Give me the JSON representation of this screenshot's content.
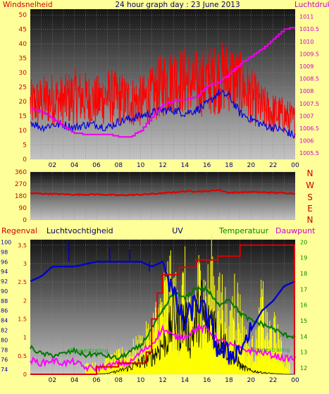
{
  "header": {
    "left_label": "Windsnelheid",
    "title": "24 hour graph day : 23 June 2013",
    "right_label": "Luchtdruk"
  },
  "colors": {
    "background": "#ffff99",
    "wind": "#ff0000",
    "gust": "#0000dd",
    "pressure": "#ee00ee",
    "direction": "#dd0000",
    "rain": "#dd0000",
    "humidity": "#0000cc",
    "uv": "#ffff00",
    "temperature": "#007700",
    "dewpoint": "#ff00ff",
    "solar": "#000000",
    "label_red": "#cc0000",
    "label_navy": "#000066",
    "label_magenta": "#cc00cc",
    "label_green": "#008800"
  },
  "compass": [
    "N",
    "W",
    "S",
    "E",
    "N"
  ],
  "legend3": {
    "rain": "Regenval",
    "humidity": "Luchtvochtigheid",
    "uv": "UV",
    "temperature": "Temperatuur",
    "dewpoint": "Dauwpunt",
    "overlay_left": "Zonnestraling",
    "overlay_right": "Zonnestraling"
  },
  "x_ticks": [
    "02",
    "04",
    "06",
    "08",
    "10",
    "12",
    "14",
    "16",
    "18",
    "20",
    "22",
    "00"
  ],
  "chart_data": [
    {
      "type": "line",
      "panel": "wind_pressure",
      "x_range_hours": [
        0,
        24
      ],
      "x_tick_labels": [
        "02",
        "04",
        "06",
        "08",
        "10",
        "12",
        "14",
        "16",
        "18",
        "20",
        "22",
        "00"
      ],
      "y_left": {
        "label": "Windsnelheid",
        "ticks": [
          0,
          5,
          10,
          15,
          20,
          25,
          30,
          35,
          40,
          45,
          50
        ],
        "ylim": [
          0,
          52
        ]
      },
      "y_right": {
        "label": "Luchtdruk",
        "ticks": [
          "1005.5",
          "1006",
          "1006.5",
          "1007",
          "1007.5",
          "1008",
          "1008.5",
          "1009",
          "1009.5",
          "1010",
          "1010.5",
          "1011"
        ],
        "ylim": [
          1005.25,
          1011.3
        ]
      },
      "grid": true,
      "series": [
        {
          "key": "wind",
          "axis": "left",
          "x": [
            0,
            1,
            2,
            3,
            4,
            5,
            6,
            7,
            8,
            9,
            10,
            11,
            12,
            13,
            14,
            15,
            16,
            17,
            18,
            19,
            20,
            21,
            22,
            23,
            24
          ],
          "values": [
            19,
            20,
            21,
            20,
            22,
            21,
            20,
            22,
            21,
            20,
            20,
            22,
            26,
            28,
            27,
            26,
            27,
            28,
            29,
            26,
            22,
            18,
            16,
            15,
            13
          ]
        },
        {
          "key": "gust",
          "axis": "left",
          "x": [
            0,
            1,
            2,
            3,
            4,
            5,
            6,
            7,
            8,
            9,
            10,
            11,
            12,
            13,
            14,
            15,
            16,
            17,
            18,
            19,
            20,
            21,
            22,
            23,
            24
          ],
          "values": [
            13,
            11,
            12,
            12,
            11,
            12,
            12,
            11,
            13,
            14,
            15,
            16,
            17,
            17,
            16,
            17,
            19,
            23,
            22,
            16,
            14,
            12,
            11,
            10,
            8
          ]
        },
        {
          "key": "pressure",
          "axis": "right",
          "x": [
            0,
            1,
            2,
            3,
            4,
            5,
            6,
            7,
            8,
            9,
            10,
            11,
            12,
            13,
            14,
            15,
            16,
            17,
            18,
            19,
            20,
            21,
            22,
            23,
            24
          ],
          "values": [
            1007.3,
            1007.15,
            1006.9,
            1006.55,
            1006.3,
            1006.25,
            1006.25,
            1006.25,
            1006.15,
            1006.15,
            1006.4,
            1006.95,
            1007.45,
            1007.6,
            1007.65,
            1007.75,
            1008.2,
            1008.35,
            1008.7,
            1009.1,
            1009.4,
            1009.7,
            1010.1,
            1010.5,
            1010.55
          ]
        }
      ]
    },
    {
      "type": "line",
      "panel": "wind_direction",
      "x_range_hours": [
        0,
        24
      ],
      "y": {
        "ticks": [
          0,
          90,
          180,
          270,
          360
        ],
        "ylim": [
          0,
          360
        ]
      },
      "grid": true,
      "series": [
        {
          "key": "direction",
          "x": [
            0,
            2,
            4,
            6,
            8,
            10,
            12,
            14,
            16,
            17,
            18,
            20,
            22,
            24
          ],
          "values": [
            200,
            195,
            190,
            192,
            185,
            190,
            200,
            215,
            215,
            225,
            205,
            210,
            205,
            200
          ]
        }
      ]
    },
    {
      "type": "line",
      "panel": "rain_humidity_uv_temperature",
      "x_range_hours": [
        0,
        24
      ],
      "y_axes": {
        "rain": {
          "ticks": [
            0,
            0.5,
            1,
            1.5,
            2,
            2.5,
            3,
            3.5
          ]
        },
        "humidity": {
          "ticks": [
            74,
            76,
            78,
            80,
            82,
            84,
            86,
            88,
            90,
            92,
            94,
            96,
            98,
            100
          ]
        },
        "temperature": {
          "ticks": [
            12,
            13,
            14,
            15,
            16,
            17,
            18,
            19,
            20
          ]
        }
      },
      "grid": true,
      "series": [
        {
          "key": "rain",
          "axis": "rain",
          "x": [
            0,
            5,
            6,
            8,
            10,
            10.5,
            11,
            11.5,
            12,
            13,
            13.5,
            14,
            15,
            16,
            17,
            18,
            19,
            20,
            21,
            22,
            23,
            24
          ],
          "values": [
            0,
            0,
            0.2,
            0.3,
            0.3,
            0.6,
            1.5,
            2.2,
            2.7,
            2.7,
            2.9,
            2.9,
            3.1,
            3.1,
            3.2,
            3.2,
            3.5,
            3.5,
            3.5,
            3.5,
            3.5,
            3.5
          ]
        },
        {
          "key": "humidity",
          "axis": "humidity",
          "x": [
            0,
            1,
            2,
            4,
            6,
            8,
            10,
            11,
            12,
            13,
            14,
            15,
            16,
            17,
            18,
            19,
            20,
            21,
            22,
            23,
            24
          ],
          "values": [
            92,
            93,
            95,
            95,
            96,
            96,
            96,
            95,
            96,
            89,
            83,
            88,
            85,
            78,
            77,
            78,
            82,
            86,
            88,
            91,
            92
          ]
        },
        {
          "key": "temperature",
          "axis": "temperature",
          "x": [
            0,
            1,
            2,
            3,
            4,
            5,
            6,
            8,
            10,
            11,
            12,
            13,
            14,
            15,
            16,
            17,
            18,
            19,
            20,
            21,
            22,
            23,
            24
          ],
          "values": [
            13.3,
            12.9,
            12.8,
            12.9,
            13.1,
            12.8,
            12.9,
            12.6,
            13.4,
            14.5,
            15.6,
            16.8,
            16.4,
            17.1,
            17.0,
            16.0,
            16.4,
            15.5,
            15.0,
            14.8,
            14.5,
            14.1,
            14.0
          ]
        },
        {
          "key": "dewpoint",
          "axis": "temperature",
          "x": [
            0,
            1,
            2,
            3,
            4,
            5,
            6,
            7,
            8,
            9,
            10,
            11,
            12,
            13,
            14,
            15,
            16,
            17,
            18,
            19,
            20,
            21,
            22,
            23,
            24
          ],
          "values": [
            12.5,
            12.3,
            12.5,
            12.3,
            12.4,
            12.0,
            12.0,
            12.1,
            12.3,
            12.3,
            13.0,
            13.5,
            14.5,
            14.0,
            14.0,
            14.5,
            14.5,
            13.8,
            13.5,
            13.2,
            13.1,
            13.0,
            12.8,
            12.6,
            12.6
          ]
        },
        {
          "key": "uv",
          "axis": "rain",
          "style": "bars",
          "x": [
            6,
            8,
            9,
            10,
            11,
            11.5,
            12,
            12.5,
            13,
            13.5,
            14,
            14.5,
            15,
            15.5,
            16,
            16.5,
            17,
            17.5,
            18,
            18.5,
            19,
            19.5,
            20,
            20.5,
            21,
            21.5,
            22,
            22.5,
            23
          ],
          "values": [
            0.3,
            0.6,
            0.8,
            1.0,
            1.5,
            2.0,
            2.4,
            3.2,
            2.6,
            2.4,
            3.1,
            1.8,
            2.8,
            3.3,
            2.6,
            3.5,
            2.3,
            2.9,
            1.2,
            3.0,
            2.1,
            1.2,
            0.9,
            1.1,
            2.5,
            1.4,
            1.6,
            1.2,
            0.5
          ]
        },
        {
          "key": "solar",
          "axis": "rain",
          "x": [
            0,
            5,
            7,
            8,
            9,
            10,
            11,
            12,
            12.5,
            13,
            13.5,
            14,
            14.5,
            15,
            15.5,
            16,
            16.5,
            17,
            17.5,
            18,
            18.5,
            19,
            20,
            21,
            22,
            23,
            24
          ],
          "values": [
            0,
            0,
            0.02,
            0.1,
            0.2,
            0.35,
            0.5,
            0.9,
            1.1,
            1.8,
            1.4,
            1.7,
            1.0,
            1.6,
            2.0,
            1.3,
            1.8,
            1.0,
            1.1,
            0.5,
            0.7,
            0.25,
            0.1,
            0.05,
            0.02,
            0,
            0
          ]
        }
      ]
    }
  ]
}
